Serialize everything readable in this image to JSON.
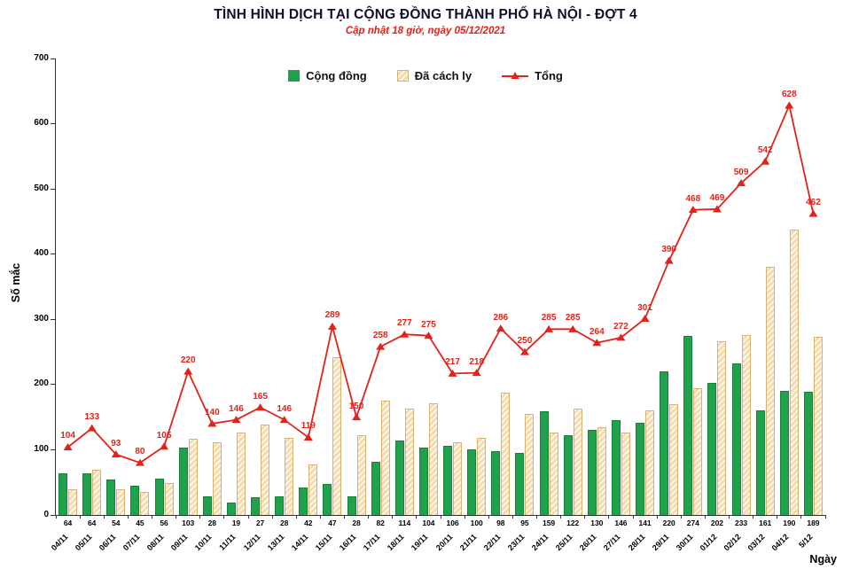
{
  "colors": {
    "community_green": "#1fa24b",
    "isolated_tan": "#f5dcae",
    "total_red": "#e2231a"
  },
  "chart_data": {
    "type": "combo",
    "title": "TÌNH HÌNH DỊCH TẠI CỘNG ĐỒNG THÀNH PHỐ HÀ NỘI - ĐỢT 4",
    "subtitle": "Cập nhật 18 giờ, ngày 05/12/2021",
    "xlabel": "Ngày",
    "ylabel": "Số mắc",
    "ylim": [
      0,
      700
    ],
    "y_ticks": [
      0,
      100,
      200,
      300,
      400,
      500,
      600,
      700
    ],
    "grid": false,
    "legend_position": "top-center",
    "bar_value_labels_position": "below-axis",
    "line_value_labels_position": "above-points",
    "categories": [
      "04/11",
      "05/11",
      "06/11",
      "07/11",
      "08/11",
      "09/11",
      "10/11",
      "11/11",
      "12/11",
      "13/11",
      "14/11",
      "15/11",
      "16/11",
      "17/11",
      "18/11",
      "19/11",
      "20/11",
      "21/11",
      "22/11",
      "23/11",
      "24/11",
      "25/11",
      "26/11",
      "27/11",
      "28/11",
      "29/11",
      "30/11",
      "01/12",
      "02/12",
      "03/12",
      "04/12",
      "5/12"
    ],
    "series": [
      {
        "name": "Cộng đồng",
        "type": "bar",
        "values": [
          64,
          64,
          54,
          45,
          56,
          103,
          28,
          19,
          27,
          28,
          42,
          47,
          28,
          82,
          114,
          104,
          106,
          100,
          98,
          95,
          159,
          122,
          130,
          146,
          141,
          220,
          274,
          202,
          233,
          161,
          190,
          189
        ]
      },
      {
        "name": "Đã cách ly",
        "type": "bar",
        "values": [
          40,
          69,
          39,
          35,
          49,
          117,
          112,
          127,
          138,
          118,
          77,
          242,
          122,
          176,
          163,
          171,
          111,
          118,
          188,
          155,
          126,
          163,
          134,
          126,
          160,
          170,
          194,
          267,
          276,
          381,
          438,
          273
        ]
      },
      {
        "name": "Tổng",
        "type": "line",
        "values": [
          104,
          133,
          93,
          80,
          105,
          220,
          140,
          146,
          165,
          146,
          119,
          289,
          150,
          258,
          277,
          275,
          217,
          218,
          286,
          250,
          285,
          285,
          264,
          272,
          301,
          390,
          468,
          469,
          509,
          542,
          628,
          462
        ]
      }
    ]
  }
}
